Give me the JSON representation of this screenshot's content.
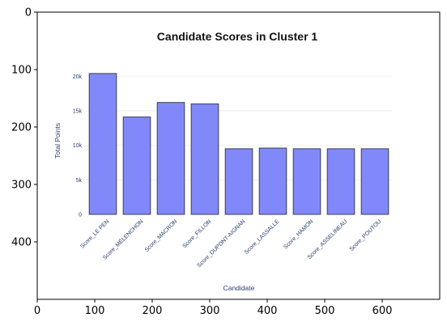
{
  "outer_axes": {
    "x_ticks": [
      "0",
      "100",
      "200",
      "300",
      "400",
      "500",
      "600"
    ],
    "x_tick_values": [
      0,
      100,
      200,
      300,
      400,
      500,
      600
    ],
    "x_range": [
      0,
      700
    ],
    "y_ticks": [
      "0",
      "100",
      "200",
      "300",
      "400"
    ],
    "y_tick_values": [
      0,
      100,
      200,
      300,
      400
    ],
    "y_range": [
      500,
      0
    ]
  },
  "chart_data": {
    "type": "bar",
    "title": "Candidate Scores in Cluster 1",
    "xlabel": "Candidate",
    "ylabel": "Total Points",
    "categories": [
      "Score_LE PEN",
      "Score_MÉLENCHON",
      "Score_MACRON",
      "Score_FILLON",
      "Score_DUPONT-AIGNAN",
      "Score_LASSALLE",
      "Score_HAMON",
      "Score_ASSELINEAU",
      "Score_POUTOU"
    ],
    "values": [
      20400,
      14100,
      16200,
      16000,
      9500,
      9600,
      9500,
      9500,
      9500
    ],
    "yticks": [
      "0",
      "5k",
      "10k",
      "15k",
      "20k"
    ],
    "ytick_values": [
      0,
      5000,
      10000,
      15000,
      20000
    ],
    "ylim": [
      0,
      20500
    ],
    "bar_color": "#8189fa",
    "bar_edge_color": "#3d3d4f",
    "grid": true
  }
}
